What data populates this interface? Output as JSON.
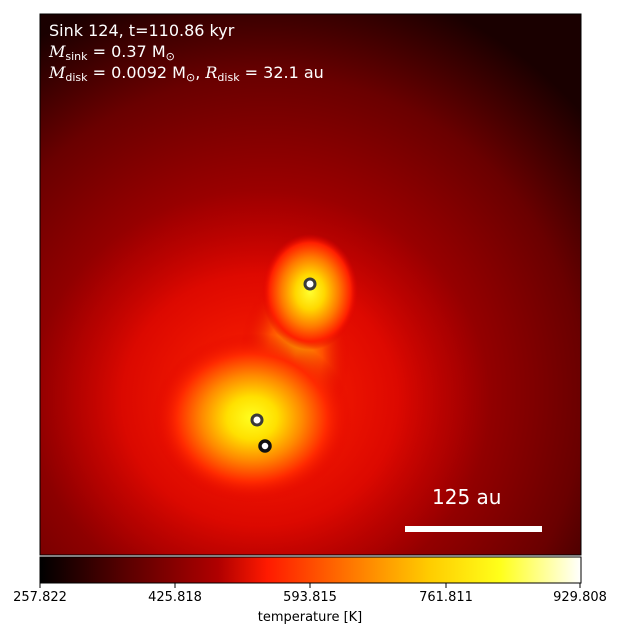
{
  "annotation": {
    "line1": "Sink 124, t=110.86 kyr",
    "msink_symbol": "M",
    "msink_sub": "sink",
    "msink_value": " = 0.37 M",
    "msink_unit_sub": "⊙",
    "mdisk_symbol": "M",
    "mdisk_sub": "disk",
    "mdisk_value": " = 0.0092 M",
    "mdisk_unit_sub": "⊙",
    "rdisk_sep": ", ",
    "rdisk_symbol": "R",
    "rdisk_sub": "disk",
    "rdisk_value": " = 32.1 au"
  },
  "scalebar": {
    "label": "125 au"
  },
  "colorbar": {
    "ticks": [
      "257.822",
      "425.818",
      "593.815",
      "761.811",
      "929.808"
    ],
    "label": "temperature [K]",
    "colormap": [
      "#000000",
      "#5a0000",
      "#b00000",
      "#ff1a00",
      "#ff7a00",
      "#ffcc00",
      "#ffff1a",
      "#ffffff"
    ]
  },
  "colors": {
    "sink_ring": "#3a3a3a",
    "background_field": "#9a0000"
  }
}
